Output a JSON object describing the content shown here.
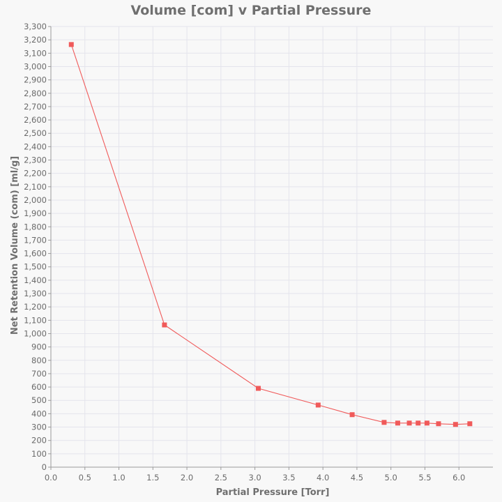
{
  "chart_data": {
    "type": "line",
    "title": "Volume [com] v Partial Pressure",
    "xlabel": "Partial Pressure [Torr]",
    "ylabel": "Net Retention Volume (com) [ml/g]",
    "xlim": [
      0,
      6.5
    ],
    "ylim": [
      0,
      3300
    ],
    "x_ticks": [
      0,
      0.5,
      1,
      1.5,
      2,
      2.5,
      3,
      3.5,
      4,
      4.5,
      5,
      5.5,
      6
    ],
    "x_tick_labels": [
      "0.0",
      "0.5",
      "1.0",
      "1.5",
      "2.0",
      "2.5",
      "3.0",
      "3.5",
      "4.0",
      "4.5",
      "5.0",
      "5.5",
      "6.0"
    ],
    "y_ticks": [
      0,
      100,
      200,
      300,
      400,
      500,
      600,
      700,
      800,
      900,
      1000,
      1100,
      1200,
      1300,
      1400,
      1500,
      1600,
      1700,
      1800,
      1900,
      2000,
      2100,
      2200,
      2300,
      2400,
      2500,
      2600,
      2700,
      2800,
      2900,
      3000,
      3100,
      3200,
      3300
    ],
    "y_tick_labels": [
      "0",
      "100",
      "200",
      "300",
      "400",
      "500",
      "600",
      "700",
      "800",
      "900",
      "1,000",
      "1,100",
      "1,200",
      "1,300",
      "1,400",
      "1,500",
      "1,600",
      "1,700",
      "1,800",
      "1,900",
      "2,000",
      "2,100",
      "2,200",
      "2,300",
      "2,400",
      "2,500",
      "2,600",
      "2,700",
      "2,800",
      "2,900",
      "3,000",
      "3,100",
      "3,200",
      "3,300"
    ],
    "grid": true,
    "colors": {
      "series": "#f05a5a",
      "background": "#f8f8f8"
    },
    "series": [
      {
        "x": [
          0.3,
          1.67,
          3.05,
          3.93,
          4.43,
          4.9,
          5.1,
          5.27,
          5.4,
          5.53,
          5.7,
          5.95,
          6.16
        ],
        "y": [
          3165,
          1065,
          590,
          465,
          393,
          335,
          330,
          330,
          330,
          330,
          325,
          320,
          325
        ]
      }
    ]
  }
}
